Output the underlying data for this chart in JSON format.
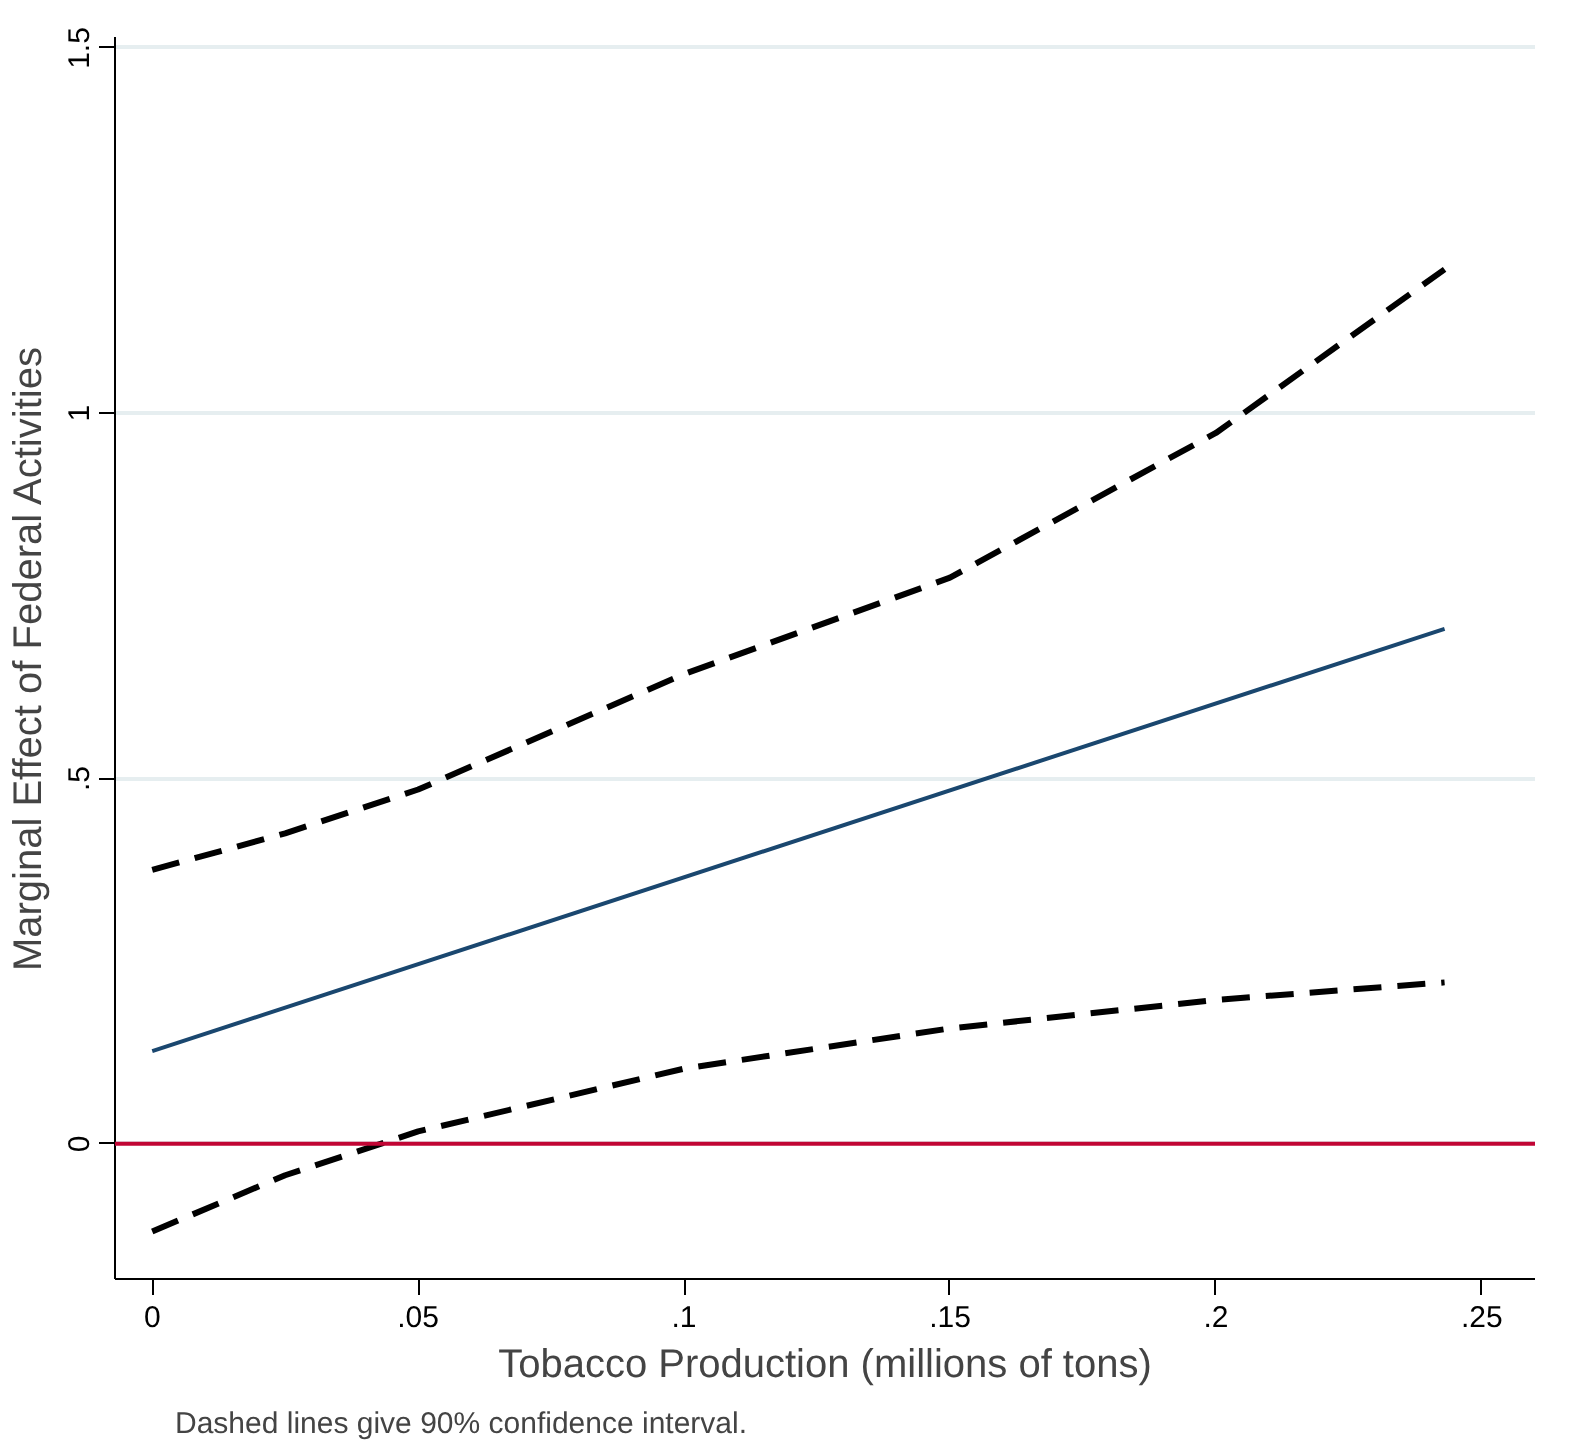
{
  "chart_data": {
    "type": "line",
    "xlabel": "Tobacco Production (millions of tons)",
    "ylabel": "Marginal Effect of Federal Activities",
    "xlim": [
      -0.007,
      0.26
    ],
    "ylim": [
      -0.185,
      1.515
    ],
    "xticks": [
      0,
      {
        "value": 0.05,
        "label": ".05"
      },
      {
        "value": 0.1,
        "label": ".1"
      },
      {
        "value": 0.15,
        "label": ".15"
      },
      {
        "value": 0.2,
        "label": ".2"
      },
      {
        "value": 0.25,
        "label": ".25"
      }
    ],
    "yticks": [
      0,
      {
        "value": 0.5,
        "label": ".5"
      },
      1,
      {
        "value": 1.5,
        "label": "1.5"
      }
    ],
    "grid": "y",
    "series": [
      {
        "color": "#1a476f",
        "line_style": "solid",
        "x": [
          0,
          0.243
        ],
        "values": [
          0.127,
          0.705
        ]
      },
      {
        "color": "#000000",
        "line_style": "dashed",
        "x": [
          0,
          0.025,
          0.05,
          0.1,
          0.15,
          0.2,
          0.243
        ],
        "values": [
          0.375,
          0.425,
          0.485,
          0.643,
          0.775,
          0.973,
          1.197
        ]
      },
      {
        "color": "#000000",
        "line_style": "dashed",
        "x": [
          0,
          0.025,
          0.05,
          0.1,
          0.15,
          0.2,
          0.243
        ],
        "values": [
          -0.12,
          -0.043,
          0.017,
          0.103,
          0.158,
          0.197,
          0.221
        ]
      }
    ],
    "ref_lines": [
      {
        "axis": "y",
        "value": 0,
        "color": "#c10534"
      }
    ],
    "annotations": [
      "Dashed lines give 90% confidence interval."
    ]
  }
}
